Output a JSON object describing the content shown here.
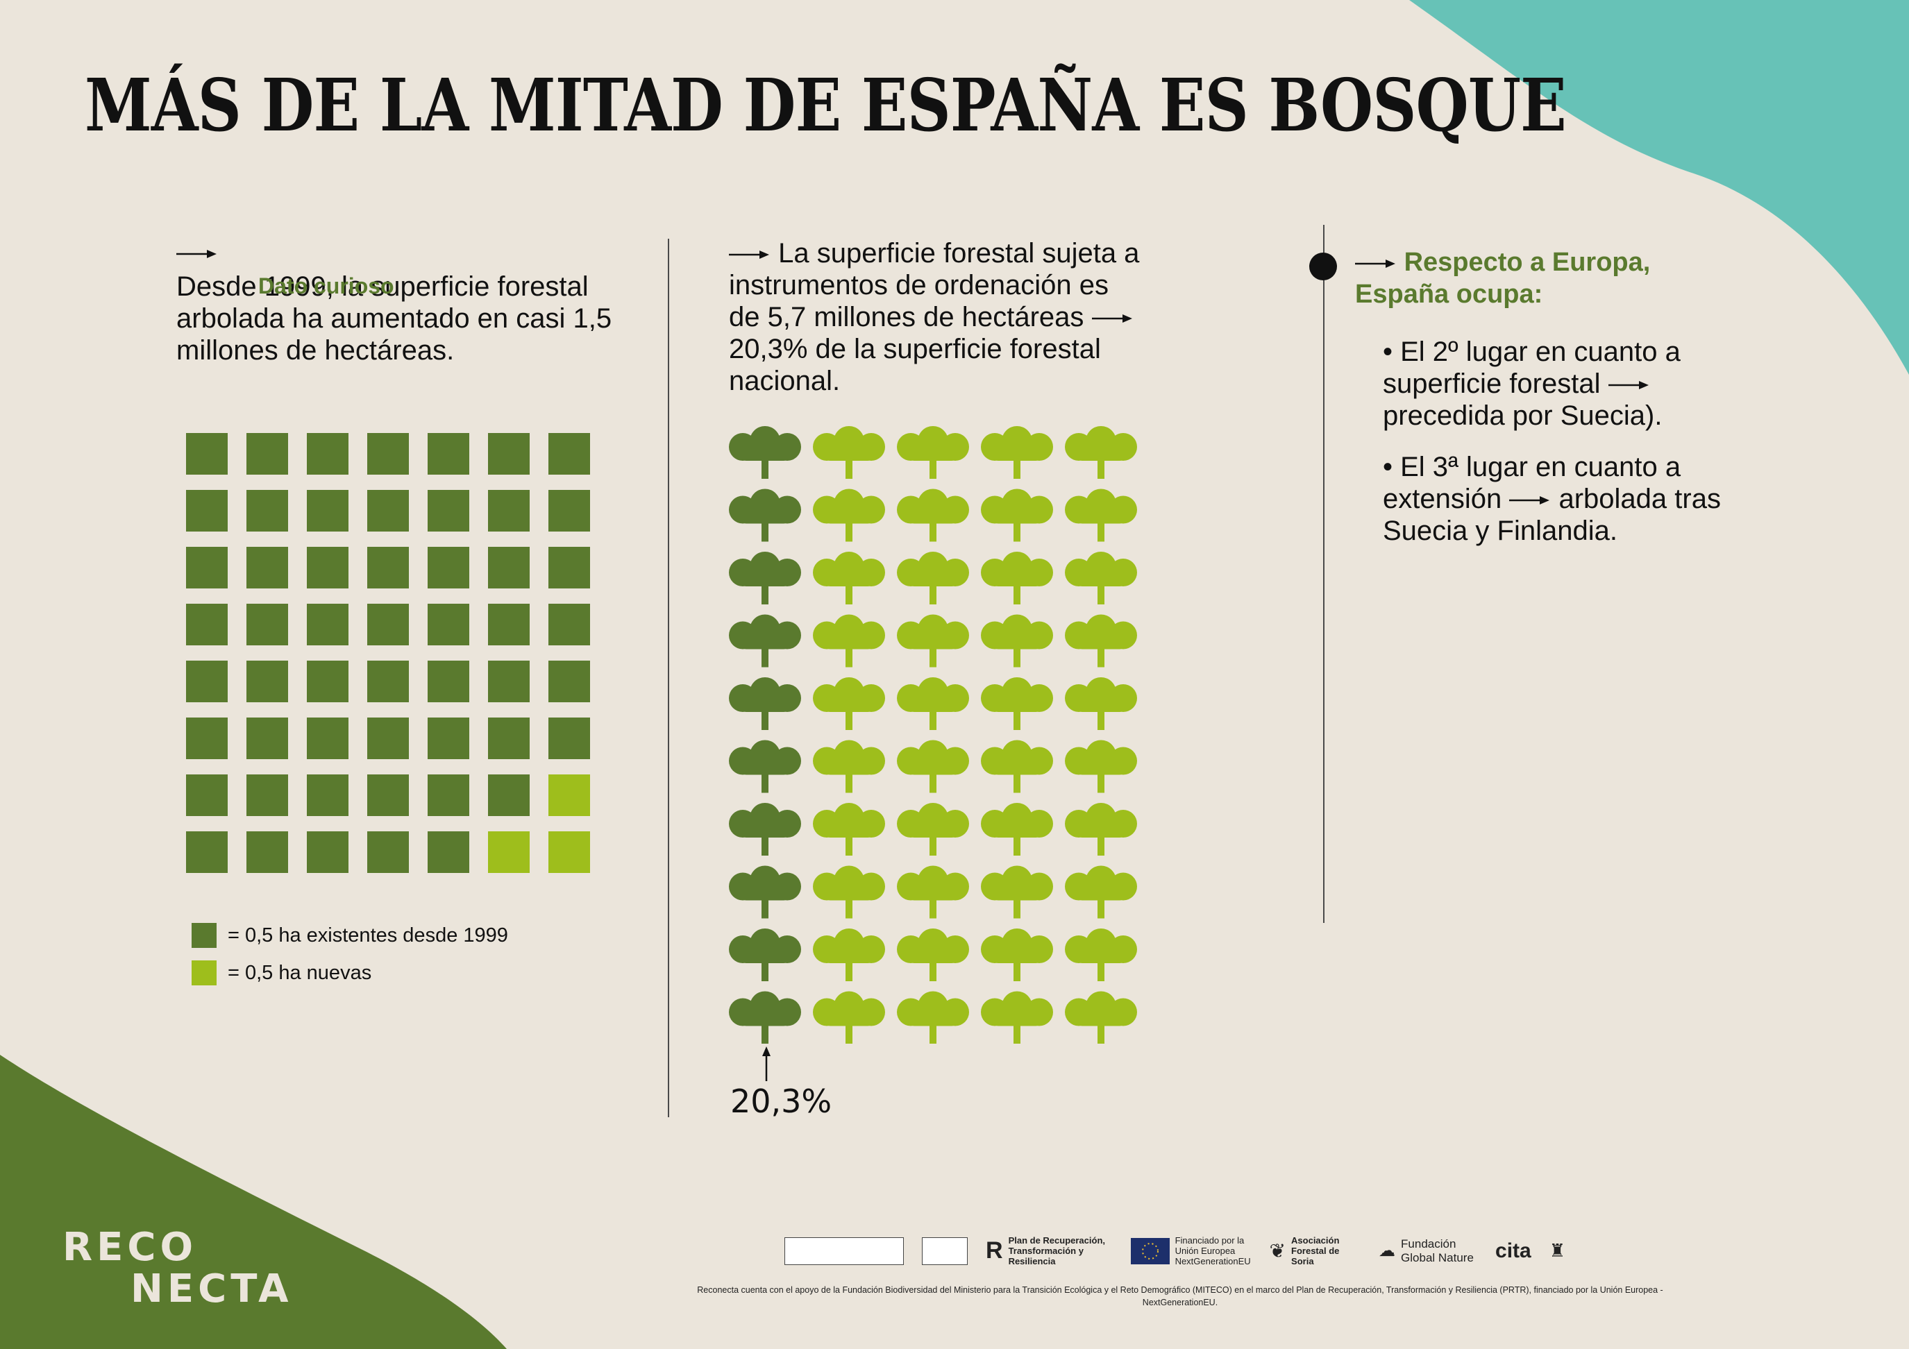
{
  "title": "MÁS DE LA MITAD DE ESPAÑA ES BOSQUE",
  "col1": {
    "overlay_label": "Dato curioso",
    "text": "Desde 1999, la superficie forestal arbolada ha aumentado en casi 1,5 millones de hectáreas.",
    "grid": {
      "columns": 7,
      "rows": 8,
      "new_count": 3
    },
    "legend": [
      {
        "label": "= 0,5 ha existentes desde 1999",
        "color": "#5a7a2e"
      },
      {
        "label": "= 0,5 ha nuevas",
        "color": "#9ebe1c"
      }
    ]
  },
  "col2": {
    "text_a": "La superficie forestal sujeta a instrumentos de ordenación es de 5,7 millones de hectáreas",
    "text_b": "20,3% de la superficie forestal nacional.",
    "grid": {
      "columns": 5,
      "rows": 10,
      "dark_columns": 1
    },
    "percent_label": "20,3%"
  },
  "col3": {
    "heading": "Respecto a Europa, España ocupa:",
    "bullet1_a": "• El 2º lugar en cuanto a superficie forestal",
    "bullet1_b": "precedida por Suecia).",
    "bullet2_a": "• El 3ª lugar en cuanto a extensión",
    "bullet2_b": "arbolada tras Suecia y Finlandia."
  },
  "logo": {
    "line1": "RECO",
    "line2": "NECTA"
  },
  "sponsors": {
    "plan": "Plan de Recuperación, Transformación y Resiliencia",
    "eu": "Financiado por la Unión Europea NextGenerationEU",
    "asociacion": "Asociación Forestal de Soria",
    "fundacion": "Fundación Global Nature",
    "cita": "cita"
  },
  "footer_note": "Reconecta cuenta con el apoyo de la Fundación Biodiversidad del Ministerio para la Transición Ecológica y el Reto Demográfico (MITECO) en el marco del Plan de Recuperación, Transformación y Resiliencia (PRTR), financiado por la Unión Europea - NextGenerationEU.",
  "colors": {
    "background": "#ebe5db",
    "dark_green": "#5a7a2e",
    "light_green": "#9ebe1c",
    "teal": "#67c2b7",
    "footer_green": "#5a7a2e"
  }
}
